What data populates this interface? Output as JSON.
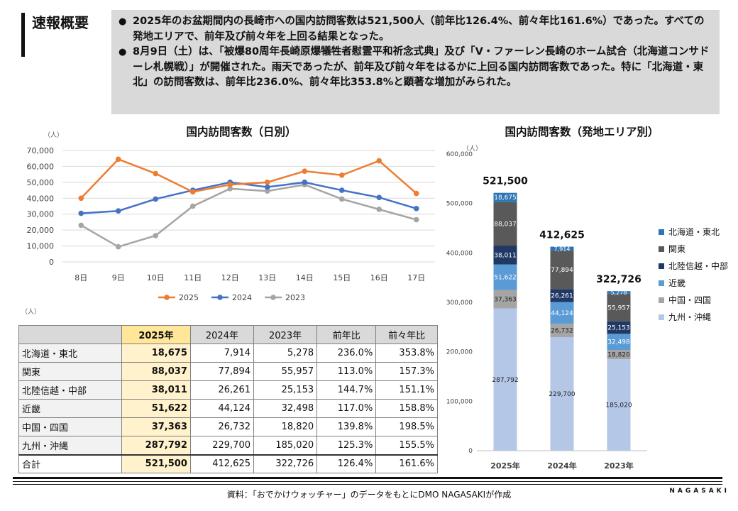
{
  "header": {
    "title": "速報概要",
    "bullets": [
      "2025年のお盆期間内の長崎市への国内訪問客数は521,500人（前年比126.4%、前々年比161.6%）であった。すべての発地エリアで、前年及び前々年を上回る結果となった。",
      "8月9日（土）は、「被爆80周年長崎原爆犠牲者慰霊平和祈念式典」及び「V・ファーレン長崎のホーム試合（北海道コンサドーレ札幌戦）」が開催された。雨天であったが、前年及び前々年をはるかに上回る国内訪問客数であった。特に「北海道・東北」の訪問客数は、前年比236.0%、前々年比353.8%と顕著な増加がみられた。"
    ]
  },
  "line_chart_title": "国内訪問客数（日別）",
  "bar_chart_title": "国内訪問客数（発地エリア別）",
  "unit": "（人）",
  "table": {
    "headers": [
      "",
      "2025年",
      "2024年",
      "2023年",
      "前年比",
      "前々年比"
    ],
    "rows": [
      [
        "北海道・東北",
        "18,675",
        "7,914",
        "5,278",
        "236.0%",
        "353.8%"
      ],
      [
        "関東",
        "88,037",
        "77,894",
        "55,957",
        "113.0%",
        "157.3%"
      ],
      [
        "北陸信越・中部",
        "38,011",
        "26,261",
        "25,153",
        "144.7%",
        "151.1%"
      ],
      [
        "近畿",
        "51,622",
        "44,124",
        "32,498",
        "117.0%",
        "158.8%"
      ],
      [
        "中国・四国",
        "37,363",
        "26,732",
        "18,820",
        "139.8%",
        "198.5%"
      ],
      [
        "九州・沖縄",
        "287,792",
        "229,700",
        "185,020",
        "125.3%",
        "155.5%"
      ],
      [
        "合計",
        "521,500",
        "412,625",
        "322,726",
        "126.4%",
        "161.6%"
      ]
    ]
  },
  "footer": {
    "source": "資料：「おでかけウォッチャー」のデータをもとにDMO NAGASAKIが作成",
    "brand": "NAGASAKI"
  },
  "colors": {
    "s2025": "#ed7d31",
    "s2024": "#4472c4",
    "s2023": "#a5a5a5",
    "hokkaido": "#2e75b6",
    "kanto": "#595959",
    "hokuriku": "#1f3864",
    "kinki": "#5b9bd5",
    "chugoku": "#a5a5a5",
    "kyushu": "#b4c7e7"
  },
  "chart_data": [
    {
      "type": "line",
      "title": "国内訪問客数（日別）",
      "ylabel": "（人）",
      "categories": [
        "8日",
        "9日",
        "10日",
        "11日",
        "12日",
        "13日",
        "14日",
        "15日",
        "16日",
        "17日"
      ],
      "ylim": [
        0,
        70000
      ],
      "yticks": [
        0,
        10000,
        20000,
        30000,
        40000,
        50000,
        60000,
        70000
      ],
      "ytick_labels": [
        "0",
        "10,000",
        "20,000",
        "30,000",
        "40,000",
        "50,000",
        "60,000",
        "70,000"
      ],
      "series": [
        {
          "name": "2025",
          "color": "#ed7d31",
          "values": [
            40000,
            64500,
            55500,
            44000,
            48500,
            50000,
            57000,
            54500,
            63500,
            43000
          ]
        },
        {
          "name": "2024",
          "color": "#4472c4",
          "values": [
            30500,
            32000,
            39500,
            45000,
            50000,
            47000,
            50000,
            45000,
            40500,
            33500
          ]
        },
        {
          "name": "2023",
          "color": "#a5a5a5",
          "values": [
            23000,
            9500,
            16500,
            35000,
            46000,
            44500,
            48500,
            39500,
            33000,
            26500
          ]
        }
      ]
    },
    {
      "type": "bar",
      "stacked": true,
      "title": "国内訪問客数（発地エリア別）",
      "ylabel": "（人）",
      "categories": [
        "2025年",
        "2024年",
        "2023年"
      ],
      "ylim": [
        0,
        600000
      ],
      "yticks": [
        0,
        100000,
        200000,
        300000,
        400000,
        500000,
        600000
      ],
      "ytick_labels": [
        "0",
        "100,000",
        "200,000",
        "300,000",
        "400,000",
        "500,000",
        "600,000"
      ],
      "totals": [
        521500,
        412625,
        322726
      ],
      "total_labels": [
        "521,500",
        "412,625",
        "322,726"
      ],
      "series": [
        {
          "name": "九州・沖縄",
          "color": "#b4c7e7",
          "values": [
            287792,
            229700,
            185020
          ],
          "labels": [
            "287,792",
            "229,700",
            "185,020"
          ]
        },
        {
          "name": "中国・四国",
          "color": "#a5a5a5",
          "values": [
            37363,
            26732,
            18820
          ],
          "labels": [
            "37,363",
            "26,732",
            "18,820"
          ]
        },
        {
          "name": "近畿",
          "color": "#5b9bd5",
          "values": [
            51622,
            44124,
            32498
          ],
          "labels": [
            "51,622",
            "44,124",
            "32,498"
          ]
        },
        {
          "name": "北陸信越・中部",
          "color": "#1f3864",
          "values": [
            38011,
            26261,
            25153
          ],
          "labels": [
            "38,011",
            "26,261",
            "25,153"
          ]
        },
        {
          "name": "関東",
          "color": "#595959",
          "values": [
            88037,
            77894,
            55957
          ],
          "labels": [
            "88,037",
            "77,894",
            "55,957"
          ]
        },
        {
          "name": "北海道・東北",
          "color": "#2e75b6",
          "values": [
            18675,
            7914,
            5278
          ],
          "labels": [
            "18,675",
            "7,914",
            "5,278"
          ]
        }
      ],
      "legend": [
        "北海道・東北",
        "関東",
        "北陸信越・中部",
        "近畿",
        "中国・四国",
        "九州・沖縄"
      ]
    }
  ]
}
